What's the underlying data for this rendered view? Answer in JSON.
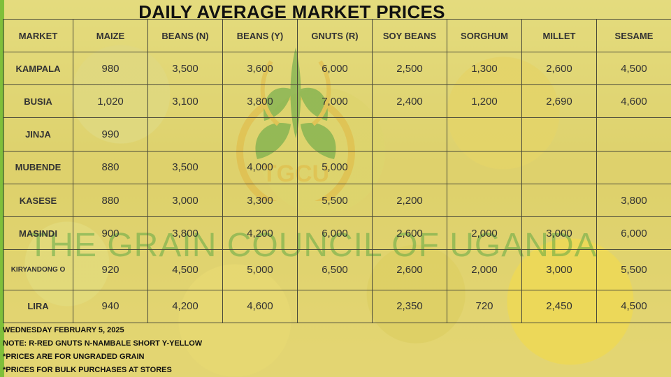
{
  "title": "DAILY AVERAGE MARKET PRICES",
  "watermark": {
    "text": "THE GRAIN COUNCIL OF UGANDA",
    "logo_text": "TGCU"
  },
  "table": {
    "headers": [
      "MARKET",
      "MAIZE",
      "BEANS (N)",
      "BEANS (Y)",
      "GNUTS (R)",
      "SOY BEANS",
      "SORGHUM",
      "MILLET",
      "SESAME"
    ],
    "rows": [
      {
        "market": "KAMPALA",
        "values": [
          "980",
          "3,500",
          "3,600",
          "6,000",
          "2,500",
          "1,300",
          "2,600",
          "4,500"
        ]
      },
      {
        "market": "BUSIA",
        "values": [
          "1,020",
          "3,100",
          "3,800",
          "7,000",
          "2,400",
          "1,200",
          "2,690",
          "4,600"
        ]
      },
      {
        "market": "JINJA",
        "values": [
          "990",
          "",
          "",
          "",
          "",
          "",
          "",
          ""
        ]
      },
      {
        "market": "MUBENDE",
        "values": [
          "880",
          "3,500",
          "4,000",
          "5,000",
          "",
          "",
          "",
          ""
        ]
      },
      {
        "market": "KASESE",
        "values": [
          "880",
          "3,000",
          "3,300",
          "5,500",
          "2,200",
          "",
          "",
          "3,800"
        ]
      },
      {
        "market": "MASINDI",
        "values": [
          "900",
          "3,800",
          "4,200",
          "6,000",
          "2,600",
          "2,000",
          "3,000",
          "6,000"
        ]
      },
      {
        "market": "KIRYANDONG O",
        "values": [
          "920",
          "4,500",
          "5,000",
          "6,500",
          "2,600",
          "2,000",
          "3,000",
          "5,500"
        ]
      },
      {
        "market": "LIRA",
        "values": [
          "940",
          "4,200",
          "4,600",
          "",
          "2,350",
          "720",
          "2,450",
          "4,500"
        ]
      }
    ]
  },
  "footer": {
    "date": "WEDNESDAY FEBRUARY 5, 2025",
    "note": "NOTE: R-RED GNUTS  N-NAMBALE SHORT  Y-YELLOW",
    "note2": "*PRICES ARE FOR UNGRADED GRAIN",
    "note3": "*PRICES FOR BULK PURCHASES AT STORES"
  },
  "colors": {
    "overlay": "#eee66e",
    "accent_green": "#7fbf3a",
    "grid_line": "#4a4a3a"
  }
}
